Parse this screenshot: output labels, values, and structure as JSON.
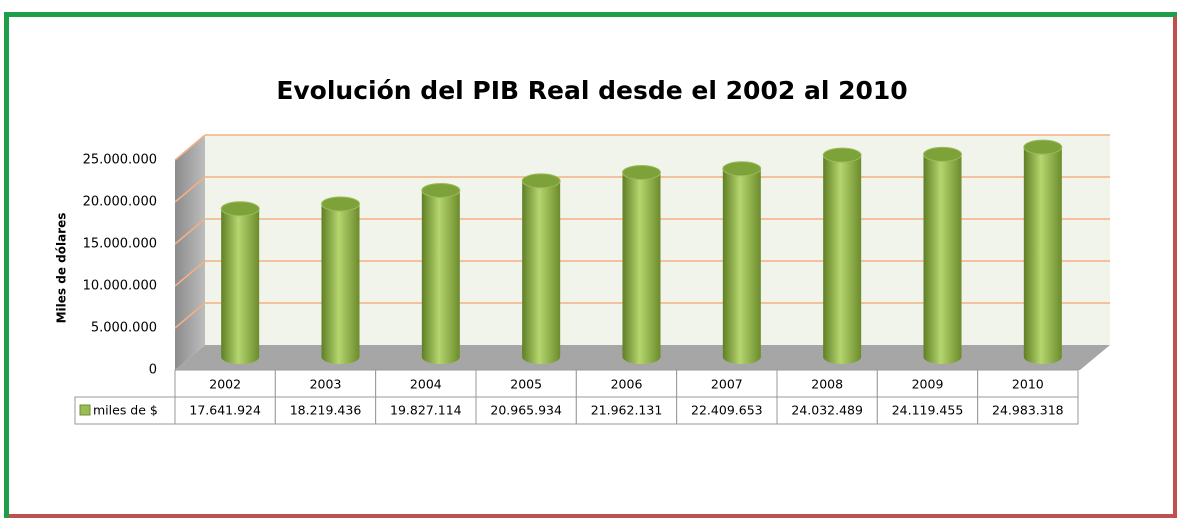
{
  "chart_data": {
    "type": "bar",
    "title": "Evolución del PIB Real desde el 2002 al 2010",
    "y_label": "Miles de dólares",
    "categories": [
      "2002",
      "2003",
      "2004",
      "2005",
      "2006",
      "2007",
      "2008",
      "2009",
      "2010"
    ],
    "series": [
      {
        "name": "miles de $",
        "color": "#9bbb59",
        "values": [
          17641924,
          18219436,
          19827114,
          20965934,
          21962131,
          22409653,
          24032489,
          24119455,
          24983318
        ],
        "value_labels": [
          "17.641.924",
          "18.219.436",
          "19.827.114",
          "20.965.934",
          "21.962.131",
          "22.409.653",
          "24.032.489",
          "24.119.455",
          "24.983.318"
        ]
      }
    ],
    "ylim": [
      0,
      25000000
    ],
    "yticks": [
      0,
      {
        "value": 5000000,
        "label": "5.000.000"
      },
      {
        "value": 10000000,
        "label": "10.000.000"
      },
      {
        "value": 15000000,
        "label": "15.000.000"
      },
      {
        "value": 20000000,
        "label": "20.000.000"
      },
      {
        "value": 25000000,
        "label": "25.000.000"
      }
    ],
    "grid": true
  }
}
